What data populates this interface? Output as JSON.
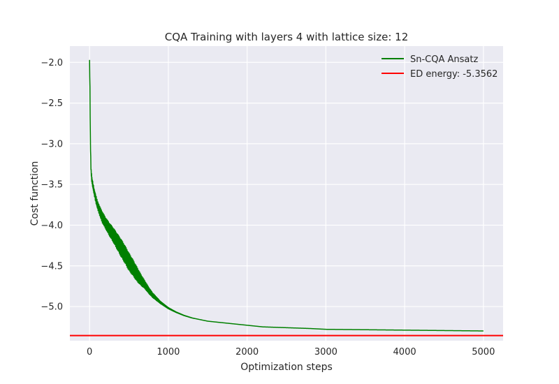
{
  "chart_data": {
    "type": "line",
    "title": "CQA Training with layers 4 with lattice size: 12",
    "xlabel": "Optimization steps",
    "ylabel": "Cost function",
    "xlim": [
      -250,
      5250
    ],
    "ylim": [
      -5.42,
      -1.8
    ],
    "xticks": [
      0,
      1000,
      2000,
      3000,
      4000,
      5000
    ],
    "xtick_labels": [
      "0",
      "1000",
      "2000",
      "3000",
      "4000",
      "5000"
    ],
    "yticks": [
      -2.0,
      -2.5,
      -3.0,
      -3.5,
      -4.0,
      -4.5,
      -5.0
    ],
    "ytick_labels": [
      "−2.0",
      "−2.5",
      "−3.0",
      "−3.5",
      "−4.0",
      "−4.5",
      "−5.0"
    ],
    "grid": true,
    "legend_position": "top-right",
    "series": [
      {
        "name": "Sn-CQA Ansatz",
        "color": "#008000",
        "x": [
          0,
          5,
          10,
          15,
          20,
          30,
          40,
          50,
          60,
          80,
          100,
          130,
          160,
          200,
          250,
          300,
          350,
          400,
          450,
          500,
          550,
          600,
          650,
          700,
          750,
          800,
          900,
          1000,
          1100,
          1200,
          1300,
          1400,
          1500,
          1600,
          1800,
          2000,
          2200,
          2500,
          2800,
          3000,
          3500,
          4000,
          4500,
          5000
        ],
        "y": [
          -1.97,
          -2.35,
          -2.9,
          -3.2,
          -3.35,
          -3.45,
          -3.5,
          -3.55,
          -3.6,
          -3.68,
          -3.75,
          -3.83,
          -3.9,
          -3.97,
          -4.05,
          -4.12,
          -4.2,
          -4.28,
          -4.36,
          -4.45,
          -4.52,
          -4.6,
          -4.67,
          -4.73,
          -4.8,
          -4.86,
          -4.95,
          -5.02,
          -5.07,
          -5.11,
          -5.14,
          -5.16,
          -5.18,
          -5.19,
          -5.21,
          -5.23,
          -5.25,
          -5.26,
          -5.27,
          -5.28,
          -5.285,
          -5.29,
          -5.295,
          -5.3
        ],
        "oscillation_amplitude": [
          0,
          0.05,
          0.05,
          0.05,
          0.04,
          0.04,
          0.04,
          0.04,
          0.04,
          0.05,
          0.05,
          0.06,
          0.07,
          0.07,
          0.08,
          0.09,
          0.1,
          0.11,
          0.11,
          0.11,
          0.1,
          0.09,
          0.07,
          0.05,
          0.04,
          0.03,
          0.015,
          0.008,
          0.004,
          0.002,
          0.001,
          0,
          0,
          0,
          0,
          0,
          0,
          0,
          0,
          0,
          0,
          0,
          0,
          0
        ]
      },
      {
        "name": "ED energy: -5.3562",
        "color": "#ff0000",
        "type": "hline",
        "y": -5.3562
      }
    ]
  }
}
